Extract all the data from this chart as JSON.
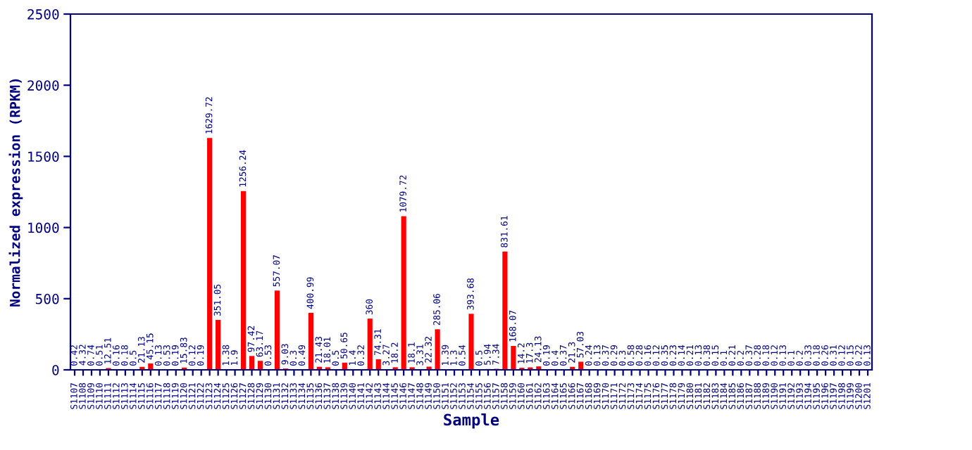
{
  "chart_data": {
    "type": "bar",
    "xlabel": "Sample",
    "ylabel": "Normalized expression (RPKM)",
    "categories": [
      "S1107",
      "S1108",
      "S1109",
      "S1110",
      "S1111",
      "S1112",
      "S1113",
      "S1114",
      "S1115",
      "S1116",
      "S1117",
      "S1118",
      "S1119",
      "S1120",
      "S1121",
      "S1122",
      "S1123",
      "S1124",
      "S1125",
      "S1126",
      "S1127",
      "S1128",
      "S1129",
      "S1130",
      "S1131",
      "S1132",
      "S1133",
      "S1134",
      "S1135",
      "S1136",
      "S1137",
      "S1138",
      "S1139",
      "S1140",
      "S1141",
      "S1142",
      "S1143",
      "S1144",
      "S1145",
      "S1146",
      "S1147",
      "S1148",
      "S1149",
      "S1150",
      "S1151",
      "S1152",
      "S1153",
      "S1154",
      "S1155",
      "S1156",
      "S1157",
      "S1158",
      "S1159",
      "S1160",
      "S1161",
      "S1162",
      "S1163",
      "S1164",
      "S1165",
      "S1166",
      "S1167",
      "S1168",
      "S1169",
      "S1170",
      "S1171",
      "S1172",
      "S1173",
      "S1174",
      "S1175",
      "S1176",
      "S1177",
      "S1178",
      "S1179",
      "S1180",
      "S1181",
      "S1182",
      "S1183",
      "S1184",
      "S1185",
      "S1186",
      "S1187",
      "S1188",
      "S1189",
      "S1190",
      "S1191",
      "S1192",
      "S1193",
      "S1194",
      "S1195",
      "S1196",
      "S1197",
      "S1198",
      "S1199",
      "S1200",
      "S1201"
    ],
    "values": [
      0.42,
      4.32,
      0.74,
      0.51,
      12.51,
      0.16,
      0.18,
      0.5,
      21.13,
      45.15,
      0.13,
      0.53,
      0.19,
      15.83,
      0.12,
      0.19,
      1629.72,
      351.05,
      1.38,
      1.9,
      1256.24,
      97.42,
      63.17,
      0.53,
      557.07,
      9.03,
      0.3,
      0.49,
      400.99,
      21.43,
      18.01,
      0.5,
      50.65,
      1.4,
      0.32,
      360,
      74.31,
      3.27,
      18.2,
      1079.72,
      18.1,
      3.31,
      22.32,
      285.06,
      1.39,
      1.3,
      0.54,
      393.68,
      0.5,
      5.94,
      7.34,
      831.61,
      168.07,
      14.2,
      17.3,
      24.13,
      0.19,
      0.4,
      0.37,
      21.3,
      57.03,
      0.24,
      0.13,
      0.37,
      0.29,
      0.3,
      0.58,
      0.28,
      0.16,
      0.12,
      0.35,
      0.23,
      0.14,
      0.21,
      0.13,
      0.38,
      0.15,
      0.1,
      0.21,
      0.2,
      0.37,
      0.28,
      0.18,
      0.12,
      0.13,
      0.1,
      0.2,
      0.33,
      0.18,
      0.26,
      0.31,
      0.12,
      0.15,
      0.22,
      0.13
    ],
    "color": "#ff0000",
    "ylim": [
      0,
      2500
    ],
    "yticks": [
      0,
      500,
      1000,
      1500,
      2000,
      2500
    ],
    "data_labels": true,
    "grid": false,
    "legend": false
  }
}
